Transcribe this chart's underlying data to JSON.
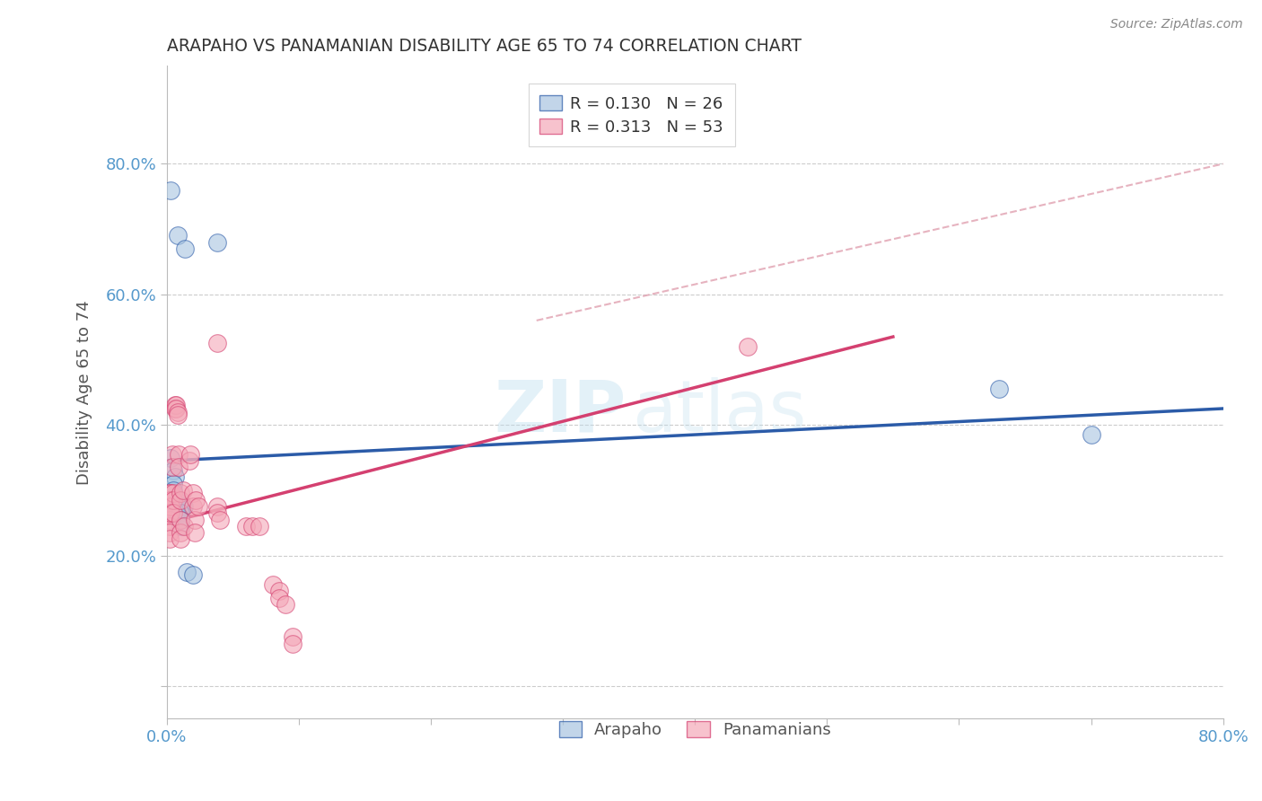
{
  "title": "ARAPAHO VS PANAMANIAN DISABILITY AGE 65 TO 74 CORRELATION CHART",
  "source": "Source: ZipAtlas.com",
  "ylabel": "Disability Age 65 to 74",
  "xlim": [
    0.0,
    0.8
  ],
  "ylim": [
    -0.05,
    0.95
  ],
  "yticks": [
    0.0,
    0.2,
    0.4,
    0.6,
    0.8
  ],
  "ytick_labels": [
    "",
    "20.0%",
    "40.0%",
    "60.0%",
    "80.0%"
  ],
  "xticks": [
    0.0,
    0.1,
    0.2,
    0.3,
    0.4,
    0.5,
    0.6,
    0.7,
    0.8
  ],
  "xtick_labels": [
    "0.0%",
    "",
    "",
    "",
    "",
    "",
    "",
    "",
    "80.0%"
  ],
  "color_blue": "#A8C4E0",
  "color_pink": "#F4A8B8",
  "line_color_blue": "#2B5BA8",
  "line_color_pink": "#D44070",
  "line_color_dashed": "#E0A0B0",
  "arapaho_points": [
    [
      0.003,
      0.76
    ],
    [
      0.008,
      0.69
    ],
    [
      0.014,
      0.67
    ],
    [
      0.038,
      0.68
    ],
    [
      0.003,
      0.35
    ],
    [
      0.005,
      0.33
    ],
    [
      0.006,
      0.32
    ],
    [
      0.005,
      0.31
    ],
    [
      0.005,
      0.3
    ],
    [
      0.005,
      0.285
    ],
    [
      0.007,
      0.285
    ],
    [
      0.009,
      0.285
    ],
    [
      0.005,
      0.275
    ],
    [
      0.007,
      0.275
    ],
    [
      0.009,
      0.275
    ],
    [
      0.01,
      0.275
    ],
    [
      0.012,
      0.275
    ],
    [
      0.013,
      0.275
    ],
    [
      0.005,
      0.265
    ],
    [
      0.007,
      0.265
    ],
    [
      0.01,
      0.265
    ],
    [
      0.01,
      0.255
    ],
    [
      0.01,
      0.245
    ],
    [
      0.015,
      0.175
    ],
    [
      0.02,
      0.17
    ],
    [
      0.63,
      0.455
    ],
    [
      0.7,
      0.385
    ]
  ],
  "panamanian_points": [
    [
      0.002,
      0.295
    ],
    [
      0.002,
      0.285
    ],
    [
      0.002,
      0.275
    ],
    [
      0.002,
      0.265
    ],
    [
      0.002,
      0.255
    ],
    [
      0.002,
      0.245
    ],
    [
      0.002,
      0.235
    ],
    [
      0.002,
      0.225
    ],
    [
      0.003,
      0.295
    ],
    [
      0.003,
      0.285
    ],
    [
      0.003,
      0.275
    ],
    [
      0.003,
      0.265
    ],
    [
      0.004,
      0.355
    ],
    [
      0.004,
      0.335
    ],
    [
      0.005,
      0.295
    ],
    [
      0.005,
      0.285
    ],
    [
      0.005,
      0.265
    ],
    [
      0.006,
      0.43
    ],
    [
      0.006,
      0.425
    ],
    [
      0.007,
      0.43
    ],
    [
      0.007,
      0.425
    ],
    [
      0.008,
      0.42
    ],
    [
      0.008,
      0.415
    ],
    [
      0.009,
      0.355
    ],
    [
      0.009,
      0.335
    ],
    [
      0.01,
      0.295
    ],
    [
      0.01,
      0.285
    ],
    [
      0.01,
      0.255
    ],
    [
      0.01,
      0.235
    ],
    [
      0.01,
      0.225
    ],
    [
      0.012,
      0.3
    ],
    [
      0.013,
      0.245
    ],
    [
      0.017,
      0.345
    ],
    [
      0.018,
      0.355
    ],
    [
      0.02,
      0.295
    ],
    [
      0.02,
      0.275
    ],
    [
      0.021,
      0.255
    ],
    [
      0.021,
      0.235
    ],
    [
      0.022,
      0.285
    ],
    [
      0.024,
      0.275
    ],
    [
      0.038,
      0.525
    ],
    [
      0.038,
      0.275
    ],
    [
      0.038,
      0.265
    ],
    [
      0.04,
      0.255
    ],
    [
      0.06,
      0.245
    ],
    [
      0.065,
      0.245
    ],
    [
      0.07,
      0.245
    ],
    [
      0.08,
      0.155
    ],
    [
      0.085,
      0.145
    ],
    [
      0.085,
      0.135
    ],
    [
      0.09,
      0.125
    ],
    [
      0.095,
      0.075
    ],
    [
      0.095,
      0.065
    ],
    [
      0.44,
      0.52
    ]
  ],
  "blue_line_x": [
    0.0,
    0.8
  ],
  "blue_line_y": [
    0.345,
    0.425
  ],
  "pink_line_x": [
    0.0,
    0.55
  ],
  "pink_line_y": [
    0.25,
    0.535
  ],
  "dashed_line_x": [
    0.28,
    0.8
  ],
  "dashed_line_y": [
    0.56,
    0.8
  ],
  "watermark_zip": "ZIP",
  "watermark_atlas": "atlas",
  "background_color": "#FFFFFF",
  "grid_color": "#CCCCCC",
  "tick_color": "#5599CC",
  "title_color": "#333333",
  "axis_color": "#BBBBBB"
}
